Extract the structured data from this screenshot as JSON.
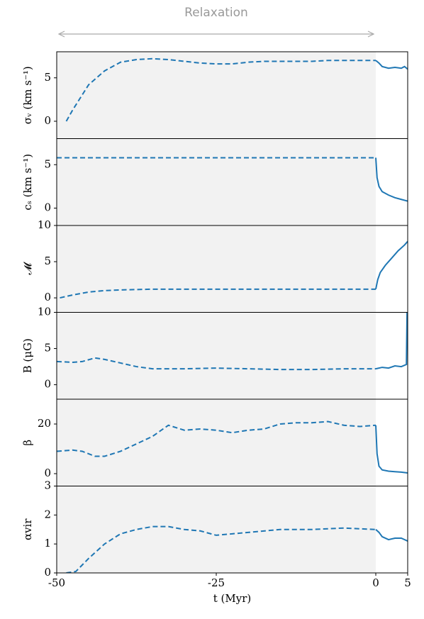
{
  "chart_data": [
    {
      "type": "line",
      "annotation": "Relaxation",
      "ylabel": "σᵥ (km s⁻¹)",
      "xlim": [
        -50,
        5
      ],
      "ylim": [
        -2,
        8
      ],
      "yticks": [
        0,
        5
      ],
      "shade": [
        -50,
        0
      ],
      "series": [
        {
          "color": "#1f77b4",
          "style": "dashed",
          "x": [
            -48.5,
            -47.5,
            -45,
            -42.5,
            -40,
            -37.5,
            -35,
            -32.5,
            -30,
            -27.5,
            -25,
            -22.5,
            -20,
            -17.5,
            -15,
            -12.5,
            -10,
            -7.5,
            -5,
            -2.5,
            0
          ],
          "values": [
            0,
            1.3,
            4.2,
            5.8,
            6.8,
            7.1,
            7.2,
            7.1,
            6.9,
            6.7,
            6.6,
            6.6,
            6.8,
            6.9,
            6.9,
            6.9,
            6.9,
            7.0,
            7.0,
            7.0,
            7.0
          ]
        },
        {
          "color": "#1f77b4",
          "style": "solid",
          "x": [
            0,
            0.5,
            1,
            2,
            3,
            4,
            4.5,
            5
          ],
          "values": [
            7.0,
            6.7,
            6.3,
            6.1,
            6.2,
            6.1,
            6.3,
            6.0
          ]
        }
      ]
    },
    {
      "type": "line",
      "ylabel": "cₛ (km s⁻¹)",
      "xlim": [
        -50,
        5
      ],
      "ylim": [
        -2,
        8
      ],
      "yticks": [
        0,
        5
      ],
      "shade": [
        -50,
        0
      ],
      "series": [
        {
          "color": "#1f77b4",
          "style": "dashed",
          "x": [
            -50,
            0
          ],
          "values": [
            5.8,
            5.8
          ]
        },
        {
          "color": "#1f77b4",
          "style": "solid",
          "x": [
            0,
            0.2,
            0.5,
            1,
            2,
            3,
            4,
            5
          ],
          "values": [
            5.8,
            3.5,
            2.5,
            1.9,
            1.5,
            1.2,
            1.0,
            0.8
          ]
        }
      ]
    },
    {
      "type": "line",
      "ylabel": "𝓜",
      "xlim": [
        -50,
        5
      ],
      "ylim": [
        -2,
        10
      ],
      "yticks": [
        0,
        5,
        10
      ],
      "shade": [
        -50,
        0
      ],
      "series": [
        {
          "color": "#1f77b4",
          "style": "dashed",
          "x": [
            -49.5,
            -47.5,
            -45,
            -42.5,
            -40,
            -35,
            -25,
            -15,
            0
          ],
          "values": [
            0,
            0.4,
            0.8,
            1.0,
            1.1,
            1.2,
            1.2,
            1.2,
            1.2
          ]
        },
        {
          "color": "#1f77b4",
          "style": "solid",
          "x": [
            0,
            0.3,
            0.7,
            1.5,
            2.5,
            3.5,
            4.5,
            5
          ],
          "values": [
            1.2,
            2.5,
            3.5,
            4.5,
            5.5,
            6.5,
            7.3,
            7.8
          ]
        }
      ]
    },
    {
      "type": "line",
      "ylabel": "B (μG)",
      "xlim": [
        -50,
        5
      ],
      "ylim": [
        -2,
        10
      ],
      "yticks": [
        0,
        5,
        10
      ],
      "shade": [
        -50,
        0
      ],
      "series": [
        {
          "color": "#1f77b4",
          "style": "dashed",
          "x": [
            -50,
            -47.5,
            -46,
            -44,
            -42.5,
            -40,
            -37.5,
            -35,
            -30,
            -25,
            -20,
            -15,
            -10,
            -5,
            0
          ],
          "values": [
            3.2,
            3.1,
            3.2,
            3.7,
            3.5,
            3.0,
            2.5,
            2.2,
            2.2,
            2.3,
            2.2,
            2.1,
            2.1,
            2.2,
            2.2
          ]
        },
        {
          "color": "#1f77b4",
          "style": "solid",
          "x": [
            0,
            1,
            2,
            3,
            4,
            4.8,
            4.9
          ],
          "values": [
            2.2,
            2.4,
            2.3,
            2.6,
            2.5,
            2.8,
            10
          ]
        }
      ]
    },
    {
      "type": "line",
      "ylabel": "β",
      "xlim": [
        -50,
        5
      ],
      "ylim": [
        -5,
        30
      ],
      "yticks": [
        0,
        20
      ],
      "shade": [
        -50,
        0
      ],
      "series": [
        {
          "color": "#1f77b4",
          "style": "dashed",
          "x": [
            -50,
            -47.5,
            -46,
            -44,
            -42.5,
            -40,
            -37.5,
            -35,
            -32.5,
            -30,
            -27.5,
            -25,
            -22.5,
            -20,
            -17.5,
            -15,
            -12.5,
            -10,
            -7.5,
            -5,
            -2.5,
            0
          ],
          "values": [
            9,
            9.5,
            9,
            7,
            7,
            9,
            12,
            15,
            19.5,
            17.5,
            18,
            17.5,
            16.5,
            17.5,
            18,
            20,
            20.5,
            20.5,
            21,
            19.5,
            19,
            19.5
          ]
        },
        {
          "color": "#1f77b4",
          "style": "solid",
          "x": [
            0,
            0.2,
            0.5,
            1,
            2,
            3,
            4,
            5
          ],
          "values": [
            19.5,
            8,
            3,
            1.5,
            1,
            0.8,
            0.6,
            0.3
          ]
        }
      ]
    },
    {
      "type": "line",
      "ylabel": "αvir",
      "xlabel": "t (Myr)",
      "xlim": [
        -50,
        5
      ],
      "ylim": [
        0,
        3
      ],
      "yticks": [
        0,
        1,
        2,
        3
      ],
      "xticks": [
        -50,
        -25,
        0,
        5
      ],
      "shade": [
        -50,
        0
      ],
      "series": [
        {
          "color": "#1f77b4",
          "style": "dashed",
          "x": [
            -48.5,
            -47,
            -45,
            -42.5,
            -40,
            -37.5,
            -35,
            -32.5,
            -30,
            -27.5,
            -25,
            -22.5,
            -20,
            -15,
            -10,
            -5,
            0
          ],
          "values": [
            0,
            0.05,
            0.5,
            1.0,
            1.35,
            1.5,
            1.6,
            1.6,
            1.5,
            1.45,
            1.3,
            1.35,
            1.4,
            1.5,
            1.5,
            1.55,
            1.5
          ]
        },
        {
          "color": "#1f77b4",
          "style": "solid",
          "x": [
            0,
            0.5,
            1,
            2,
            3,
            4,
            5
          ],
          "values": [
            1.5,
            1.4,
            1.25,
            1.15,
            1.2,
            1.2,
            1.1
          ]
        }
      ]
    }
  ]
}
